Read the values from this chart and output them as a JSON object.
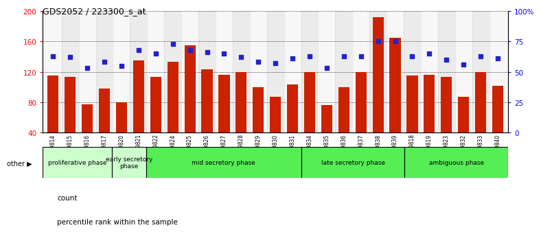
{
  "title": "GDS2052 / 223300_s_at",
  "samples": [
    "GSM109814",
    "GSM109815",
    "GSM109816",
    "GSM109817",
    "GSM109820",
    "GSM109821",
    "GSM109822",
    "GSM109824",
    "GSM109825",
    "GSM109826",
    "GSM109827",
    "GSM109828",
    "GSM109829",
    "GSM109830",
    "GSM109831",
    "GSM109834",
    "GSM109835",
    "GSM109836",
    "GSM109837",
    "GSM109838",
    "GSM109839",
    "GSM109818",
    "GSM109819",
    "GSM109823",
    "GSM109832",
    "GSM109833",
    "GSM109840"
  ],
  "counts": [
    115,
    113,
    77,
    98,
    80,
    135,
    113,
    133,
    155,
    123,
    116,
    120,
    100,
    87,
    103,
    120,
    76,
    100,
    120,
    192,
    165,
    115,
    116,
    113,
    87,
    120,
    102
  ],
  "percentiles": [
    63,
    62,
    53,
    58,
    55,
    68,
    65,
    73,
    68,
    66,
    65,
    62,
    58,
    57,
    61,
    63,
    53,
    63,
    63,
    75,
    75,
    63,
    65,
    60,
    56,
    63,
    61
  ],
  "bar_color": "#cc2200",
  "dot_color": "#2222cc",
  "ylim_left": [
    40,
    200
  ],
  "ylim_right": [
    0,
    100
  ],
  "yticks_left": [
    40,
    80,
    120,
    160,
    200
  ],
  "yticks_right": [
    0,
    25,
    50,
    75,
    100
  ],
  "ytick_labels_right": [
    "0",
    "25",
    "50",
    "75",
    "100%"
  ],
  "group_defs": [
    {
      "label": "proliferative phase",
      "start": 0,
      "end": 4,
      "color": "#ccffcc"
    },
    {
      "label": "early secretory\nphase",
      "start": 4,
      "end": 6,
      "color": "#ccffcc"
    },
    {
      "label": "mid secretory phase",
      "start": 6,
      "end": 15,
      "color": "#55ee55"
    },
    {
      "label": "late secretory phase",
      "start": 15,
      "end": 21,
      "color": "#55ee55"
    },
    {
      "label": "ambiguous phase",
      "start": 21,
      "end": 27,
      "color": "#55ee55"
    }
  ],
  "legend_count": "count",
  "legend_percentile": "percentile rank within the sample"
}
